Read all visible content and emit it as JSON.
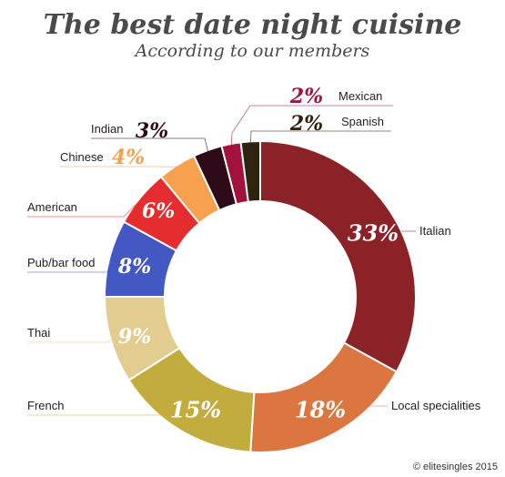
{
  "chart_data": {
    "type": "pie",
    "title": "The best date night cuisine",
    "subtitle": "According to our members",
    "categories": [
      "Italian",
      "Local specialities",
      "French",
      "Thai",
      "Pub/bar food",
      "American",
      "Chinese",
      "Indian",
      "Mexican",
      "Spanish"
    ],
    "values": [
      33,
      18,
      15,
      9,
      8,
      6,
      4,
      3,
      2,
      2
    ],
    "value_labels": [
      "33%",
      "18%",
      "15%",
      "9%",
      "8%",
      "6%",
      "4%",
      "3%",
      "2%",
      "2%"
    ],
    "colors": [
      "#8b2228",
      "#dc7640",
      "#c2ac3e",
      "#e3cc8f",
      "#4358c2",
      "#e52c2e",
      "#f7a04d",
      "#2e0b18",
      "#a3123c",
      "#2e230e"
    ],
    "donut": true
  },
  "credit": "© elitesingles 2015"
}
